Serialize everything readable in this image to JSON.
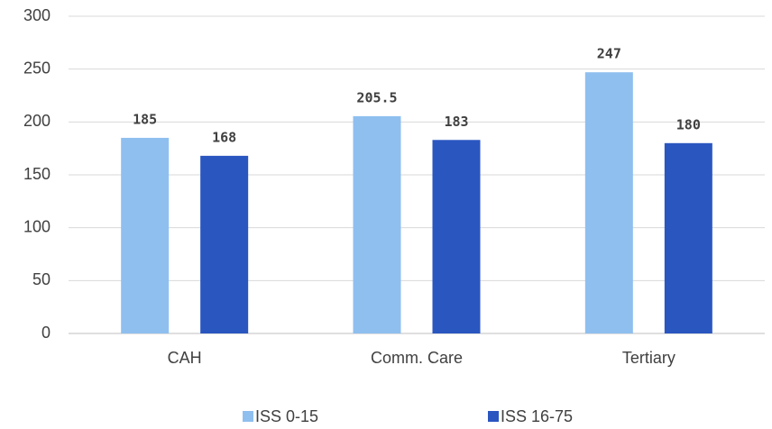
{
  "chart_data": {
    "type": "bar",
    "categories": [
      "CAH",
      "Comm. Care",
      "Tertiary"
    ],
    "series": [
      {
        "name": "ISS 0-15",
        "color": "#8fbfef",
        "values": [
          185,
          205.5,
          247
        ]
      },
      {
        "name": "ISS 16-75",
        "color": "#2a56c0",
        "values": [
          168,
          183,
          180
        ]
      }
    ],
    "ylim": [
      0,
      300
    ],
    "yticks": [
      0,
      50,
      100,
      150,
      200,
      250,
      300
    ],
    "grid": true,
    "legend": "bottom"
  }
}
